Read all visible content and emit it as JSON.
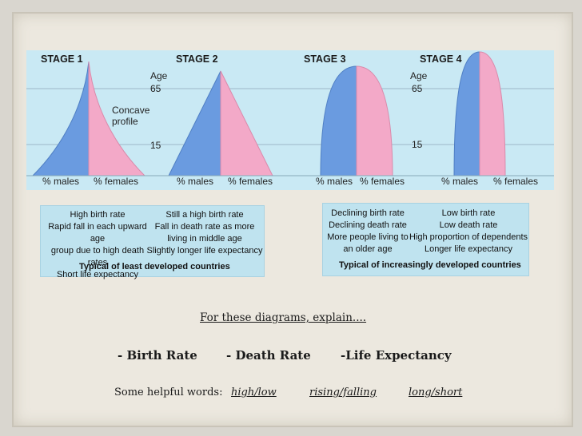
{
  "stages": [
    {
      "title": "STAGE 1"
    },
    {
      "title": "STAGE 2"
    },
    {
      "title": "STAGE 3"
    },
    {
      "title": "STAGE 4"
    }
  ],
  "labels": {
    "age": "Age",
    "age_65": "65",
    "age_15": "15",
    "concave_1": "Concave",
    "concave_2": "profile",
    "males": "% males",
    "females": "% females"
  },
  "box_left": {
    "col1": [
      "High birth rate",
      "Rapid fall in each upward age",
      "group due to high death rates",
      "Short life expectancy"
    ],
    "col2": [
      "Still a high birth rate",
      "Fall in death rate as more",
      "living in middle age",
      "Slightly longer life expectancy"
    ],
    "caption": "Typical of least developed countries"
  },
  "box_right": {
    "col1": [
      "Declining birth rate",
      "Declining death rate",
      "More people living to",
      "an older age"
    ],
    "col2": [
      "Low birth rate",
      "Low death rate",
      "High proportion of dependents",
      "Longer life expectancy"
    ],
    "caption": "Typical of increasingly developed countries"
  },
  "prompt": "For these diagrams, explain....",
  "terms": [
    "- Birth Rate",
    "- Death Rate",
    "-Life Expectancy"
  ],
  "helpful": {
    "lead": "Some helpful words:",
    "words": [
      "high/low",
      "rising/falling",
      "long/short"
    ]
  },
  "colors": {
    "males": "#6a9be0",
    "females": "#f3a9c8",
    "strip": "#c9e9f4",
    "box": "#bfe3ef"
  }
}
